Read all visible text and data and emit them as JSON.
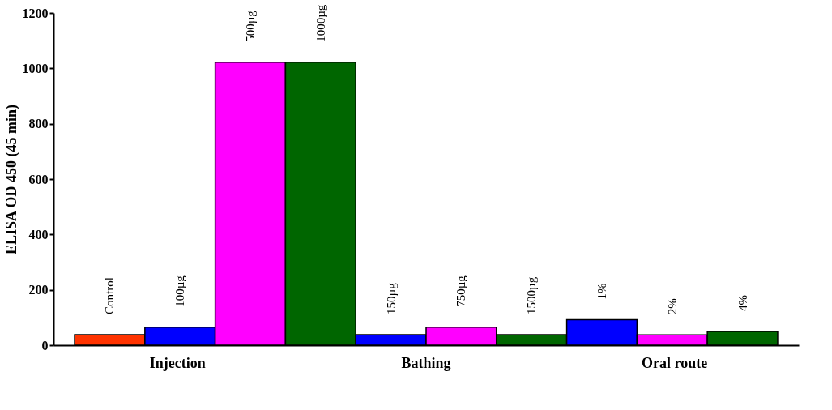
{
  "chart_data": {
    "type": "bar",
    "ylabel": "ELISA OD 450 (45 min)",
    "categories": [
      "Control",
      "100µg",
      "500µg",
      "1000µg",
      "150µg",
      "750µg",
      "1500µg",
      "1%",
      "2%",
      "4%"
    ],
    "values": [
      38,
      65,
      1022,
      1022,
      38,
      65,
      38,
      92,
      37,
      50
    ],
    "colors": [
      "#ff3300",
      "#0000ff",
      "#ff00ff",
      "#006600",
      "#0000ff",
      "#ff00ff",
      "#006600",
      "#0000ff",
      "#ff00ff",
      "#006600"
    ],
    "ylim": [
      0,
      1200
    ],
    "yticks": [
      0,
      200,
      400,
      600,
      800,
      1000,
      1200
    ],
    "grid": false,
    "legend": false,
    "annotations": [
      "Injection",
      "Bathing",
      "Oral route"
    ]
  }
}
